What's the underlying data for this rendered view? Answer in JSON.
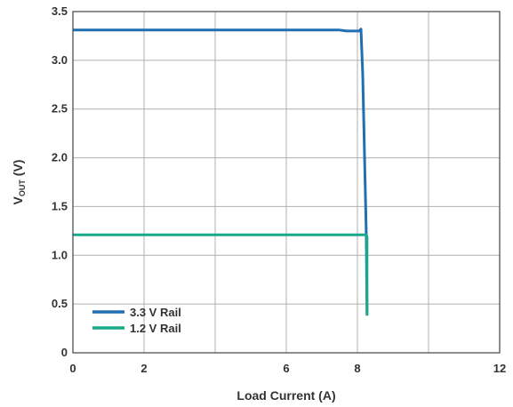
{
  "chart_data": {
    "type": "line",
    "xlabel": "Load Current (A)",
    "ylabel_main": "V",
    "ylabel_sub": "OUT",
    "ylabel_unit": " (V)",
    "xlim": [
      0,
      12
    ],
    "ylim": [
      0,
      3.5
    ],
    "x_ticks": [
      0,
      2,
      4,
      6,
      8,
      10,
      12
    ],
    "x_tick_labels": [
      "0",
      "2",
      "",
      "6",
      "8",
      "",
      "12"
    ],
    "y_ticks": [
      0,
      0.5,
      1.0,
      1.5,
      2.0,
      2.5,
      3.0,
      3.5
    ],
    "y_tick_labels": [
      "0",
      "0.5",
      "1.0",
      "1.5",
      "2.0",
      "2.5",
      "3.0",
      "3.5"
    ],
    "grid": true,
    "legend_position": "bottom-left",
    "series": [
      {
        "name": "3.3 V Rail",
        "color": "#1f6fb2",
        "points": [
          [
            0,
            3.31
          ],
          [
            7.5,
            3.31
          ],
          [
            7.7,
            3.3
          ],
          [
            8.05,
            3.3
          ],
          [
            8.1,
            3.32
          ],
          [
            8.15,
            2.85
          ],
          [
            8.25,
            1.2
          ],
          [
            8.27,
            0.4
          ]
        ]
      },
      {
        "name": "1.2 V Rail",
        "color": "#1aaa8a",
        "points": [
          [
            0,
            1.21
          ],
          [
            8.25,
            1.21
          ],
          [
            8.27,
            1.19
          ],
          [
            8.27,
            0.38
          ]
        ]
      }
    ]
  }
}
